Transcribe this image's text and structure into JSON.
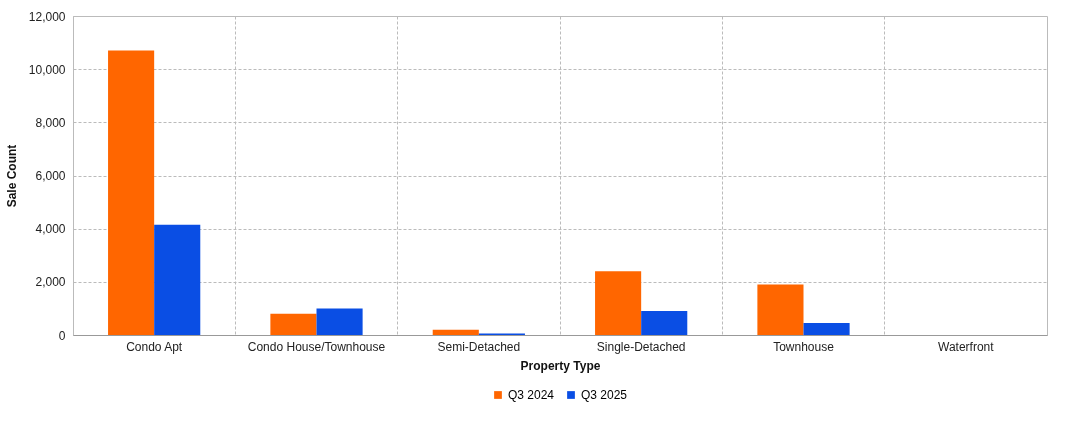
{
  "chart_data": {
    "type": "bar",
    "xlabel": "Property Type",
    "ylabel": "Sale Count",
    "categories": [
      "Condo Apt",
      "Condo House/Townhouse",
      "Semi-Detached",
      "Single-Detached",
      "Townhouse",
      "Waterfront"
    ],
    "series": [
      {
        "name": "Q3 2024",
        "color": "#ff6600",
        "values": [
          10700,
          800,
          200,
          2400,
          1900,
          0
        ]
      },
      {
        "name": "Q3 2025",
        "color": "#0a4ee4",
        "values": [
          4150,
          1000,
          60,
          900,
          450,
          0
        ]
      }
    ],
    "ylim": [
      0,
      12000
    ],
    "yticks": [
      0,
      {
        "value": 2000,
        "label": "2,000"
      },
      {
        "value": 4000,
        "label": "4,000"
      },
      {
        "value": 6000,
        "label": "6,000"
      },
      {
        "value": 8000,
        "label": "8,000"
      },
      {
        "value": 10000,
        "label": "10,000"
      },
      {
        "value": 12000,
        "label": "12,000"
      }
    ],
    "grid": true,
    "legend": "bottom"
  }
}
